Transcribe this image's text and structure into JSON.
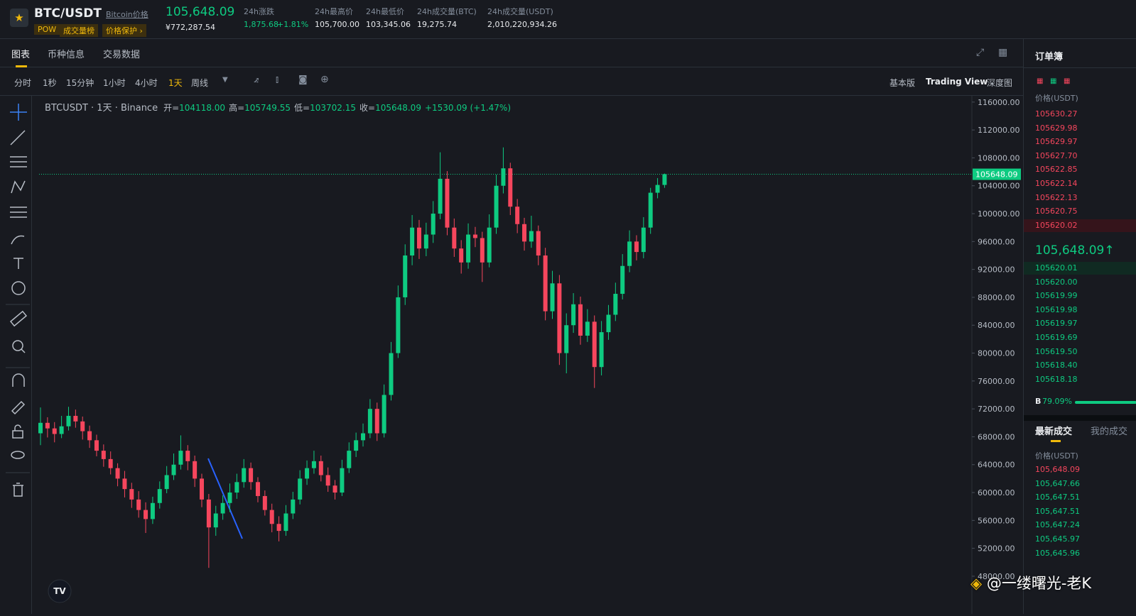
{
  "header": {
    "symbol": "BTC/USDT",
    "name_link": "Bitcoin价格",
    "price": "105,648.09",
    "price_cny": "¥772,287.54",
    "tags": [
      "POW",
      "成交量榜",
      "价格保护 ›"
    ],
    "stats": [
      {
        "label": "24h涨跌",
        "value": "1,875.68",
        "change": "+1.81%"
      },
      {
        "label": "24h最高价",
        "value": "105,700.00"
      },
      {
        "label": "24h最低价",
        "value": "103,345.06"
      },
      {
        "label": "24h成交量(BTC)",
        "value": "19,275.74"
      },
      {
        "label": "24h成交量(USDT)",
        "value": "2,010,220,934.26"
      }
    ]
  },
  "tabs": [
    "图表",
    "币种信息",
    "交易数据"
  ],
  "intervals": [
    "分时",
    "1秒",
    "15分钟",
    "1小时",
    "4小时",
    "1天",
    "周线"
  ],
  "view_modes": [
    "基本版",
    "Trading View",
    "深度图"
  ],
  "chart_data": {
    "type": "candlestick",
    "legend": {
      "title": "BTCUSDT · 1天 · Binance",
      "fields": [
        {
          "label": "开=",
          "value": "104118.00"
        },
        {
          "label": "高=",
          "value": "105749.55"
        },
        {
          "label": "低=",
          "value": "103702.15"
        },
        {
          "label": "收=",
          "value": "105648.09"
        }
      ],
      "change": "+1530.09 (+1.47%)"
    },
    "up_color": "#0ecb81",
    "down_color": "#f6465d",
    "ylim": [
      42600,
      116900
    ],
    "yticks": [
      {
        "value": 116000,
        "label": "116000.00"
      },
      {
        "value": 112000,
        "label": "112000.00"
      },
      {
        "value": 108000,
        "label": "108000.00"
      },
      {
        "value": 104000,
        "label": "104000.00"
      },
      {
        "value": 100000,
        "label": "100000.00"
      },
      {
        "value": 96000,
        "label": "96000.00"
      },
      {
        "value": 92000,
        "label": "92000.00"
      },
      {
        "value": 88000,
        "label": "88000.00"
      },
      {
        "value": 84000,
        "label": "84000.00"
      },
      {
        "value": 80000,
        "label": "80000.00"
      },
      {
        "value": 76000,
        "label": "76000.00"
      },
      {
        "value": 72000,
        "label": "72000.00"
      },
      {
        "value": 68000,
        "label": "68000.00"
      },
      {
        "value": 64000,
        "label": "64000.00"
      },
      {
        "value": 60000,
        "label": "60000.00"
      },
      {
        "value": 56000,
        "label": "56000.00"
      },
      {
        "value": 52000,
        "label": "52000.00"
      },
      {
        "value": 48000,
        "label": "48000.00"
      }
    ],
    "last_price": {
      "value": 105648.09,
      "label": "105648.09"
    },
    "candles": [
      [
        68500,
        72200,
        66800,
        70000
      ],
      [
        70000,
        70800,
        67900,
        69200
      ],
      [
        69200,
        70100,
        67200,
        68400
      ],
      [
        68400,
        71000,
        67800,
        69500
      ],
      [
        69500,
        72300,
        68900,
        71000
      ],
      [
        71000,
        71900,
        69300,
        70200
      ],
      [
        70200,
        70900,
        67600,
        68800
      ],
      [
        68800,
        69600,
        66400,
        67500
      ],
      [
        67500,
        68300,
        65200,
        66000
      ],
      [
        66000,
        66900,
        63700,
        64800
      ],
      [
        64800,
        65900,
        62600,
        63500
      ],
      [
        63500,
        64200,
        60900,
        62000
      ],
      [
        62000,
        63100,
        59300,
        60500
      ],
      [
        60500,
        61400,
        57800,
        59000
      ],
      [
        59000,
        60200,
        56400,
        57500
      ],
      [
        57500,
        58600,
        54200,
        56200
      ],
      [
        56200,
        59400,
        55500,
        58500
      ],
      [
        58500,
        61600,
        57700,
        60500
      ],
      [
        60500,
        63800,
        59900,
        62500
      ],
      [
        62500,
        65600,
        61800,
        64000
      ],
      [
        64000,
        68200,
        63300,
        66000
      ],
      [
        66000,
        66800,
        63200,
        64500
      ],
      [
        64500,
        65300,
        60800,
        62000
      ],
      [
        62000,
        62700,
        57900,
        59000
      ],
      [
        59000,
        59800,
        49200,
        55000
      ],
      [
        55000,
        58100,
        53800,
        57000
      ],
      [
        57000,
        59600,
        56100,
        58500
      ],
      [
        58500,
        61300,
        57200,
        60000
      ],
      [
        60000,
        62700,
        59100,
        61500
      ],
      [
        61500,
        64800,
        60700,
        63500
      ],
      [
        63500,
        64300,
        60400,
        61500
      ],
      [
        61500,
        62200,
        58600,
        59500
      ],
      [
        59500,
        60300,
        56700,
        57500
      ],
      [
        57500,
        58400,
        54300,
        55500
      ],
      [
        55500,
        56600,
        53000,
        54500
      ],
      [
        54500,
        58200,
        53800,
        57000
      ],
      [
        57000,
        60100,
        56200,
        59000
      ],
      [
        59000,
        63200,
        58300,
        62000
      ],
      [
        62000,
        64600,
        61100,
        63500
      ],
      [
        63500,
        66000,
        62700,
        64500
      ],
      [
        64500,
        65300,
        61600,
        62500
      ],
      [
        62500,
        63600,
        60100,
        61000
      ],
      [
        61000,
        61800,
        59000,
        60000
      ],
      [
        60000,
        64700,
        59500,
        63500
      ],
      [
        63500,
        67200,
        62800,
        66000
      ],
      [
        66000,
        68600,
        65100,
        67500
      ],
      [
        67500,
        69900,
        66600,
        68500
      ],
      [
        68500,
        73400,
        67800,
        72000
      ],
      [
        72000,
        72900,
        67400,
        68500
      ],
      [
        68500,
        75500,
        67900,
        74000
      ],
      [
        74000,
        81600,
        73200,
        80000
      ],
      [
        80000,
        89700,
        79300,
        88000
      ],
      [
        88000,
        95600,
        86900,
        94000
      ],
      [
        94000,
        99800,
        92600,
        98000
      ],
      [
        98000,
        99100,
        93500,
        95000
      ],
      [
        95000,
        98700,
        93900,
        97000
      ],
      [
        97000,
        101800,
        95800,
        100000
      ],
      [
        100000,
        108800,
        99200,
        105000
      ],
      [
        105000,
        106100,
        96900,
        98000
      ],
      [
        98000,
        99300,
        93800,
        95000
      ],
      [
        95000,
        96200,
        91400,
        93000
      ],
      [
        93000,
        98600,
        92100,
        97000
      ],
      [
        97000,
        98100,
        95200,
        96500
      ],
      [
        96500,
        97400,
        90200,
        93000
      ],
      [
        93000,
        99900,
        92300,
        98000
      ],
      [
        98000,
        105600,
        97100,
        104000
      ],
      [
        104000,
        109500,
        102900,
        106500
      ],
      [
        106500,
        107300,
        99800,
        101000
      ],
      [
        101000,
        102100,
        97200,
        98500
      ],
      [
        98500,
        99400,
        94700,
        96000
      ],
      [
        96000,
        99700,
        95100,
        97500
      ],
      [
        97500,
        98300,
        92600,
        94000
      ],
      [
        94000,
        95100,
        84700,
        86000
      ],
      [
        86000,
        91800,
        84900,
        90000
      ],
      [
        90000,
        91200,
        78300,
        80000
      ],
      [
        80000,
        85700,
        77100,
        84000
      ],
      [
        84000,
        88600,
        82900,
        87000
      ],
      [
        87000,
        88100,
        81200,
        82500
      ],
      [
        82500,
        86300,
        81600,
        84500
      ],
      [
        84500,
        85400,
        75000,
        78000
      ],
      [
        78000,
        84600,
        76800,
        83000
      ],
      [
        83000,
        86900,
        81900,
        85500
      ],
      [
        85500,
        90100,
        84600,
        88500
      ],
      [
        88500,
        94200,
        87700,
        92500
      ],
      [
        92500,
        97600,
        91600,
        96000
      ],
      [
        96000,
        96900,
        93300,
        94500
      ],
      [
        94500,
        99500,
        93600,
        98000
      ],
      [
        98000,
        103700,
        97100,
        103000
      ],
      [
        103000,
        105100,
        102200,
        104118
      ],
      [
        104118,
        105749.55,
        103702.15,
        105648.09
      ]
    ]
  },
  "order_book": {
    "title": "订单簿",
    "column": "价格(USDT)",
    "asks": [
      "105630.27",
      "105629.98",
      "105629.97",
      "105627.70",
      "105622.85",
      "105622.14",
      "105622.13",
      "105620.75",
      "105620.02"
    ],
    "mid_price": "105,648.09↑",
    "bids": [
      "105620.01",
      "105620.00",
      "105619.99",
      "105619.98",
      "105619.97",
      "105619.69",
      "105619.50",
      "105618.40",
      "105618.18"
    ],
    "ratio_side": "B",
    "ratio_value": "79.09%"
  },
  "trades": {
    "tabs": [
      "最新成交",
      "我的成交"
    ],
    "column": "价格(USDT)",
    "prices": [
      "105,648.09",
      "105,647.66",
      "105,647.51",
      "105,647.51",
      "105,647.24",
      "105,645.97",
      "105,645.96"
    ]
  },
  "watermark": "@一缕曙光-老K"
}
